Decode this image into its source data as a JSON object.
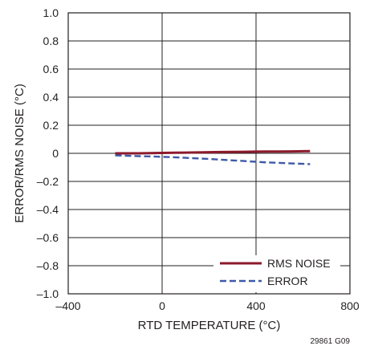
{
  "chart_data": {
    "type": "line",
    "title": "",
    "xlabel": "RTD TEMPERATURE (°C)",
    "ylabel": "ERROR/RMS NOISE (°C)",
    "xlim": [
      -400,
      800
    ],
    "ylim": [
      -1.0,
      1.0
    ],
    "x_ticks": [
      -400,
      0,
      400,
      800
    ],
    "x_tick_labels": [
      "–400",
      "0",
      "400",
      "800"
    ],
    "y_ticks": [
      1.0,
      0.8,
      0.6,
      0.4,
      0.2,
      0,
      -0.2,
      -0.4,
      -0.6,
      -0.8,
      -1.0
    ],
    "y_tick_labels": [
      "1.0",
      "0.8",
      "0.6",
      "0.4",
      "0.2",
      "0",
      "–0.2",
      "–0.4",
      "–0.6",
      "–0.8",
      "–1.0"
    ],
    "grid": true,
    "legend_position": "bottom-right",
    "series": [
      {
        "name": "RMS NOISE",
        "color": "#8b1a2b",
        "style": "solid",
        "x": [
          -200,
          -150,
          -100,
          -50,
          0,
          50,
          100,
          150,
          200,
          250,
          300,
          350,
          400,
          450,
          500,
          550,
          600,
          630
        ],
        "y": [
          0.0,
          0.0,
          0.0,
          0.002,
          0.003,
          0.004,
          0.005,
          0.006,
          0.008,
          0.009,
          0.01,
          0.011,
          0.012,
          0.013,
          0.013,
          0.014,
          0.015,
          0.016
        ]
      },
      {
        "name": "ERROR",
        "color": "#3d5aa6",
        "style": "dashed",
        "x": [
          -200,
          -150,
          -100,
          -50,
          0,
          50,
          100,
          150,
          200,
          250,
          300,
          350,
          400,
          450,
          500,
          550,
          600,
          630
        ],
        "y": [
          -0.015,
          -0.017,
          -0.02,
          -0.022,
          -0.025,
          -0.028,
          -0.032,
          -0.036,
          -0.04,
          -0.045,
          -0.05,
          -0.055,
          -0.06,
          -0.065,
          -0.068,
          -0.072,
          -0.075,
          -0.077
        ]
      }
    ]
  },
  "figure_id": "29861 G09"
}
